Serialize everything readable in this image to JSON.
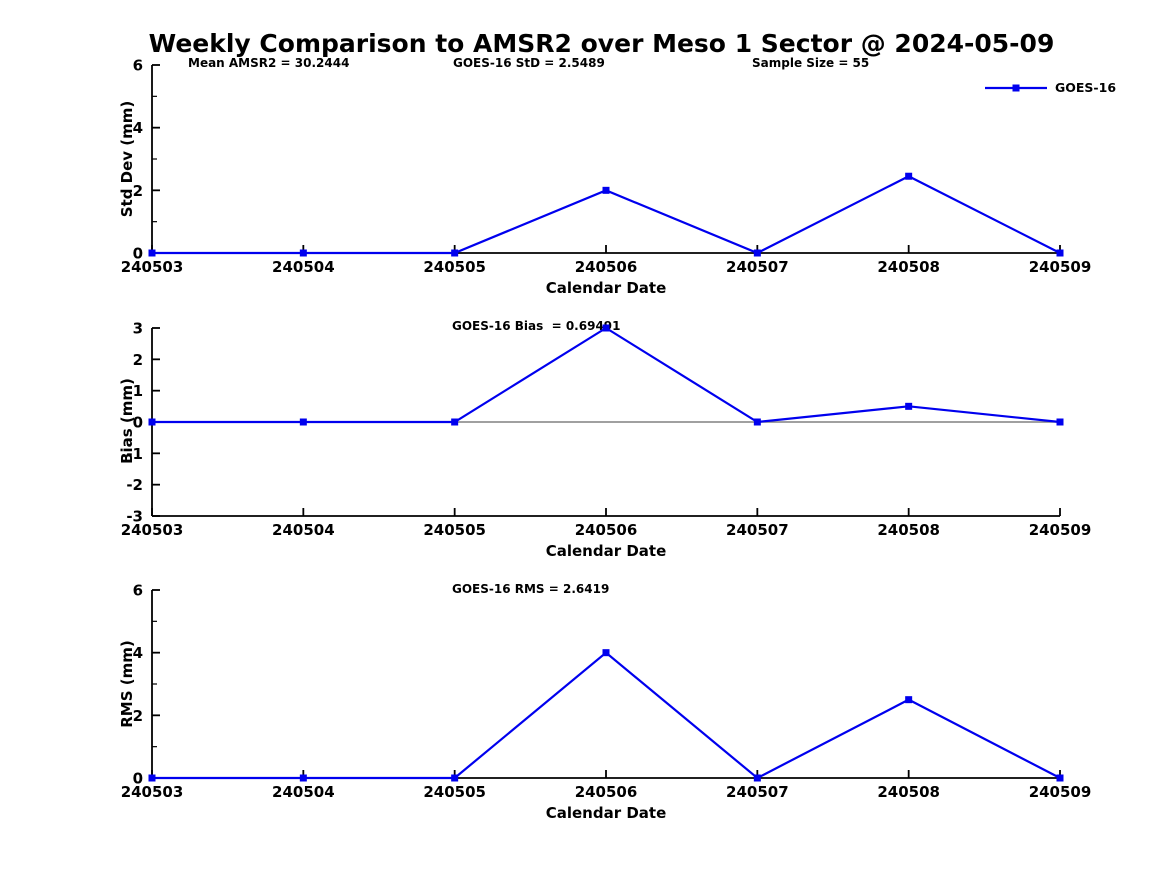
{
  "title": "Weekly Comparison to AMSR2 over Meso 1 Sector @ 2024-05-09",
  "legend": {
    "label": "GOES-16",
    "position": "top-right"
  },
  "colors": {
    "line": "#0000EE",
    "marker": "#0000EE",
    "axis": "#000000",
    "zero_line": "#808080",
    "text": "#000000",
    "background": "#FFFFFF"
  },
  "chart_data": [
    {
      "type": "line",
      "categories": [
        "240503",
        "240504",
        "240505",
        "240506",
        "240507",
        "240508",
        "240509"
      ],
      "series": [
        {
          "name": "GOES-16",
          "values": [
            0,
            0,
            0,
            2.0,
            0,
            2.45,
            0
          ]
        }
      ],
      "ylabel": "Std Dev (mm)",
      "xlabel": "Calendar Date",
      "ylim": [
        0,
        6
      ],
      "yticks": [
        0,
        2,
        4,
        6
      ],
      "yminorticks": [
        1,
        3,
        5
      ],
      "zero_line": false,
      "grid": false,
      "annotations": [
        {
          "text": "Mean AMSR2 = 30.2444"
        },
        {
          "text": "GOES-16 StD = 2.5489"
        },
        {
          "text": "Sample Size = 55"
        }
      ]
    },
    {
      "type": "line",
      "categories": [
        "240503",
        "240504",
        "240505",
        "240506",
        "240507",
        "240508",
        "240509"
      ],
      "series": [
        {
          "name": "GOES-16",
          "values": [
            0,
            0,
            0,
            3.0,
            0,
            0.5,
            0
          ]
        }
      ],
      "ylabel": "Bias (mm)",
      "xlabel": "Calendar Date",
      "ylim": [
        -3,
        3
      ],
      "yticks": [
        -3,
        -2,
        -1,
        0,
        1,
        2,
        3
      ],
      "yminorticks": [],
      "zero_line": true,
      "grid": false,
      "annotations": [
        {
          "text": "GOES-16 Bias  = 0.69491"
        }
      ]
    },
    {
      "type": "line",
      "categories": [
        "240503",
        "240504",
        "240505",
        "240506",
        "240507",
        "240508",
        "240509"
      ],
      "series": [
        {
          "name": "GOES-16",
          "values": [
            0,
            0,
            0,
            4.0,
            0,
            2.5,
            0
          ]
        }
      ],
      "ylabel": "RMS (mm)",
      "xlabel": "Calendar Date",
      "ylim": [
        0,
        6
      ],
      "yticks": [
        0,
        2,
        4,
        6
      ],
      "yminorticks": [
        1,
        3,
        5
      ],
      "zero_line": false,
      "grid": false,
      "annotations": [
        {
          "text": "GOES-16 RMS = 2.6419"
        }
      ]
    }
  ]
}
